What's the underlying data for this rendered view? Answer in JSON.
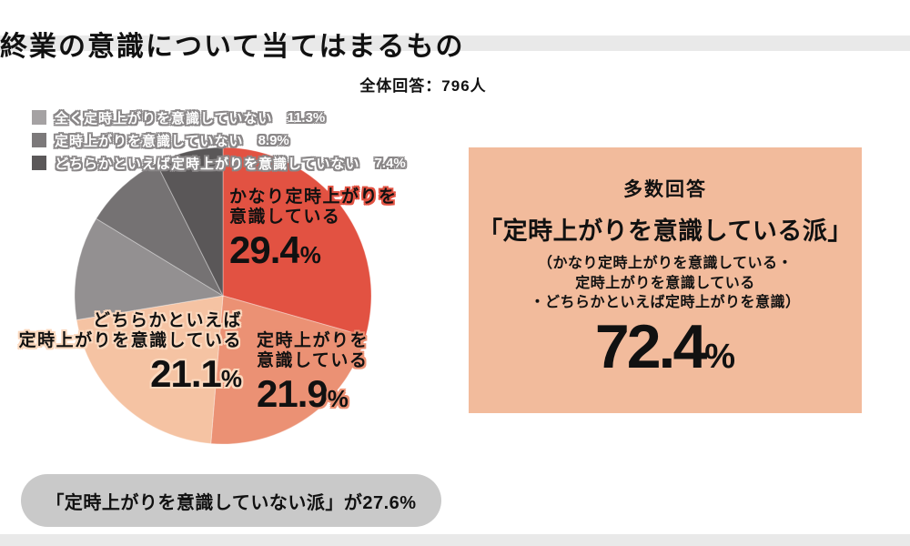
{
  "header": {
    "title": "終業の意識について当てはまるもの",
    "subtitle": "全体回答：796人"
  },
  "chart_data": {
    "type": "pie",
    "title": "終業の意識について当てはまるもの",
    "total_label": "全体回答：796人",
    "total_respondents": 796,
    "start_angle_deg": -90,
    "direction": "clockwise",
    "segments": [
      {
        "label": "かなり定時上がりを意識している",
        "value": 29.4,
        "color": "#e25242"
      },
      {
        "label": "定時上がりを意識している",
        "value": 21.9,
        "color": "#eb9174"
      },
      {
        "label": "どちらかといえば定時上がりを意識している",
        "value": 21.1,
        "color": "#f5c3a3"
      },
      {
        "label": "全く定時上がりを意識していない",
        "value": 11.3,
        "color": "#939091"
      },
      {
        "label": "定時上がりを意識していない",
        "value": 8.9,
        "color": "#757273"
      },
      {
        "label": "どちらかといえば定時上がりを意識していない",
        "value": 7.4,
        "color": "#5a5758"
      }
    ],
    "summary": {
      "aware_group_pct": 72.4,
      "not_aware_group_pct": 27.6
    }
  },
  "legend": {
    "items": [
      {
        "label": "全く定時上がりを意識していない",
        "pct": "11.3%",
        "color": "#a5a2a3"
      },
      {
        "label": "定時上がりを意識していない",
        "pct": "8.9%",
        "color": "#7c797a"
      },
      {
        "label": "どちらかといえば定時上がりを意識していない",
        "pct": "7.4%",
        "color": "#5b5859"
      }
    ]
  },
  "pie_labels": {
    "kanari": {
      "line1": "かなり定時上がりを",
      "line2": "意識している",
      "value": "29.4",
      "unit": "%"
    },
    "teiji": {
      "line1": "定時上がりを",
      "line2": "意識している",
      "value": "21.9",
      "unit": "%"
    },
    "dochira": {
      "line1": "どちらかといえば",
      "line2": "定時上がりを意識している",
      "value": "21.1",
      "unit": "%"
    }
  },
  "majority_box": {
    "heading": "多数回答",
    "title": "「定時上がりを意識している派」",
    "note_line1": "（かなり定時上がりを意識している・",
    "note_line2": "定時上がりを意識している",
    "note_line3": "・どちらかといえば定時上がりを意識）",
    "value": "72.4",
    "unit": "%",
    "bg_color": "#f2bb9c"
  },
  "minority_pill": {
    "text": "「定時上がりを意識していない派」が27.6%",
    "bg_color": "#c9c9c9"
  }
}
